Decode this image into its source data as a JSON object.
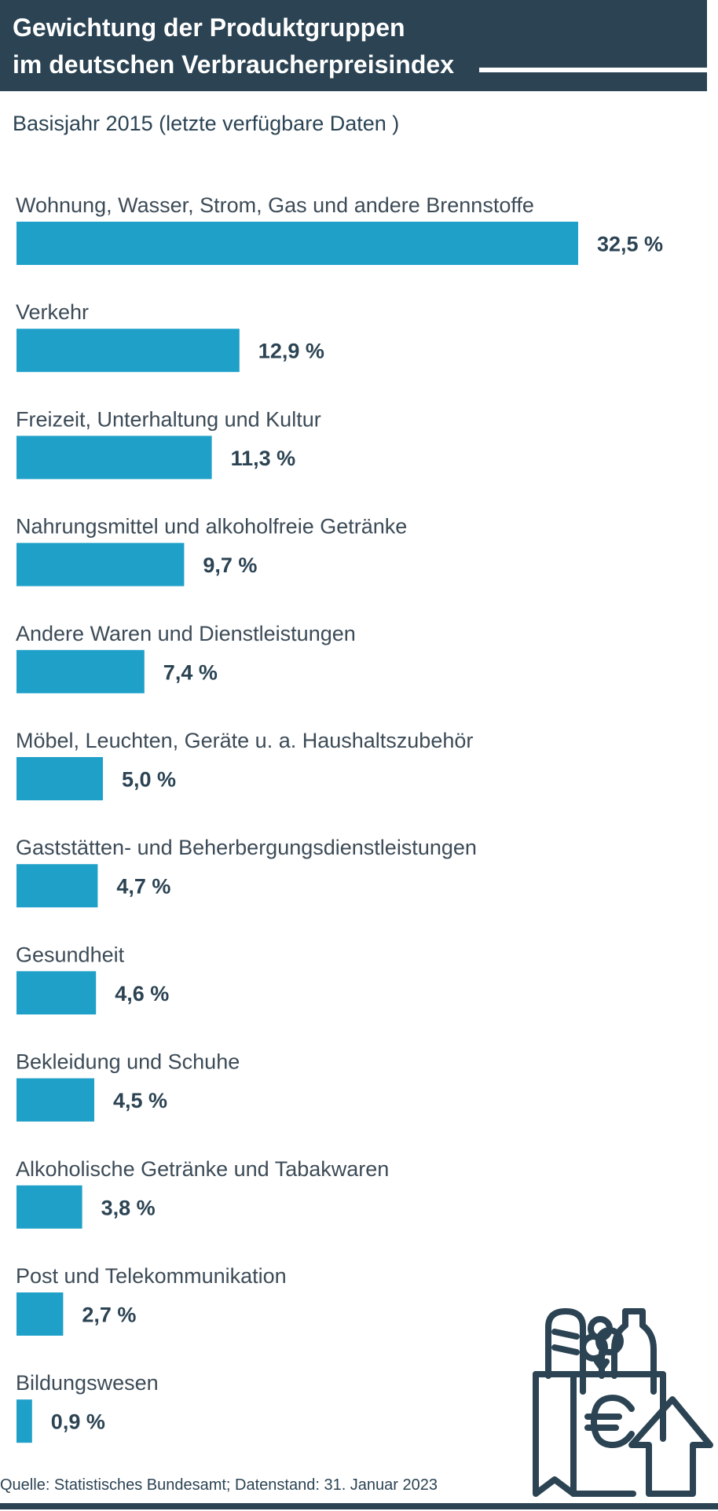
{
  "header": {
    "title_line1": "Gewichtung der Produktgruppen",
    "title_line2": "im deutschen Verbraucherpreisindex"
  },
  "subtitle": "Basisjahr 2015 (letzte verfügbare Daten )",
  "source": "Quelle: Statistisches Bundesamt; Datenstand: 31. Januar 2023",
  "colors": {
    "bar": "#1ea0c8",
    "header": "#2b4353",
    "text": "#2b4353"
  },
  "icon": "shopping-bag-euro-arrow-up-icon",
  "chart_data": {
    "type": "bar",
    "orientation": "horizontal",
    "title": "Gewichtung der Produktgruppen im deutschen Verbraucherpreisindex",
    "subtitle": "Basisjahr 2015 (letzte verfügbare Daten )",
    "categories": [
      "Wohnung, Wasser, Strom, Gas und andere Brennstoffe",
      "Verkehr",
      "Freizeit, Unterhaltung und Kultur",
      "Nahrungsmittel und alkoholfreie Getränke",
      "Andere Waren und Dienstleistungen",
      "Möbel, Leuchten, Geräte u. a. Haushaltszubehör",
      "Gaststätten- und Beherbergungsdienstleistungen",
      "Gesundheit",
      "Bekleidung und Schuhe",
      "Alkoholische Getränke und Tabakwaren",
      "Post und Telekommunikation",
      "Bildungswesen"
    ],
    "values": [
      32.5,
      12.9,
      11.3,
      9.7,
      7.4,
      5.0,
      4.7,
      4.6,
      4.5,
      3.8,
      2.7,
      0.9
    ],
    "value_labels": [
      "32,5 %",
      "12,9 %",
      "11,3 %",
      "9,7 %",
      "7,4 %",
      "5,0 %",
      "4,7 %",
      "4,6 %",
      "4,5 %",
      "3,8 %",
      "2,7 %",
      "0,9 %"
    ],
    "unit": "%",
    "grid": false,
    "legend": "none"
  }
}
